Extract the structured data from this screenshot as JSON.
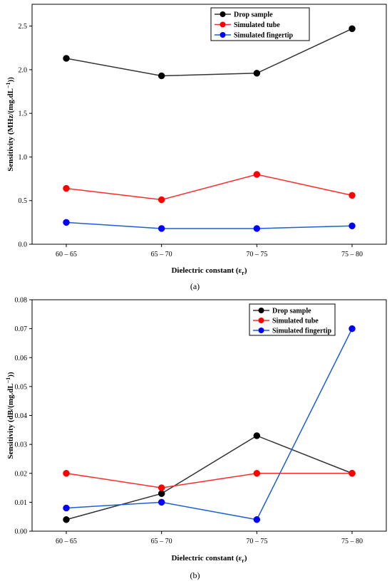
{
  "chart_data": [
    {
      "type": "line",
      "panel_label": "(a)",
      "xlabel": "Dielectric constant (ε",
      "xlabel_sub": "r",
      "xlabel_end": ")",
      "ylabel": "Sensitivity (MHz/(mg.dL",
      "ylabel_sup": "−1",
      "ylabel_end": "))",
      "categories": [
        "60 – 65",
        "65 – 70",
        "70 – 75",
        "75 – 80"
      ],
      "ylim": [
        0,
        2.75
      ],
      "yticks": [
        "0.0",
        "0.5",
        "1.0",
        "1.5",
        "2.0",
        "2.5"
      ],
      "ytick_values": [
        0,
        0.5,
        1.0,
        1.5,
        2.0,
        2.5
      ],
      "legend_position": "top-right",
      "series": [
        {
          "name": "Drop sample",
          "color": "#333333",
          "marker_color": "#000000",
          "values": [
            2.13,
            1.93,
            1.96,
            2.47
          ]
        },
        {
          "name": "Simulated tube",
          "color": "#ff2a2a",
          "marker_color": "#ff0000",
          "values": [
            0.64,
            0.51,
            0.8,
            0.56
          ]
        },
        {
          "name": "Simulated fingertip",
          "color": "#1a5fd6",
          "marker_color": "#0000ff",
          "values": [
            0.25,
            0.18,
            0.18,
            0.21
          ]
        }
      ]
    },
    {
      "type": "line",
      "panel_label": "(b)",
      "xlabel": "Dielectric constant (ε",
      "xlabel_sub": "r",
      "xlabel_end": ")",
      "ylabel": "Sensitivity (dB/(mg.dL",
      "ylabel_sup": "−1",
      "ylabel_end": "))",
      "categories": [
        "60 – 65",
        "65 – 70",
        "70 – 75",
        "75 – 80"
      ],
      "ylim": [
        0,
        0.08
      ],
      "yticks": [
        "0.00",
        "0.01",
        "0.02",
        "0.03",
        "0.04",
        "0.05",
        "0.06",
        "0.07",
        "0.08"
      ],
      "ytick_values": [
        0,
        0.01,
        0.02,
        0.03,
        0.04,
        0.05,
        0.06,
        0.07,
        0.08
      ],
      "legend_position": "top-right",
      "series": [
        {
          "name": "Drop sample",
          "color": "#333333",
          "marker_color": "#000000",
          "values": [
            0.004,
            0.013,
            0.033,
            0.02
          ]
        },
        {
          "name": "Simulated tube",
          "color": "#ff2a2a",
          "marker_color": "#ff0000",
          "values": [
            0.02,
            0.015,
            0.02,
            0.02
          ]
        },
        {
          "name": "Simulated fingertip",
          "color": "#1a5fd6",
          "marker_color": "#0000ff",
          "values": [
            0.008,
            0.01,
            0.004,
            0.07
          ]
        }
      ]
    }
  ]
}
